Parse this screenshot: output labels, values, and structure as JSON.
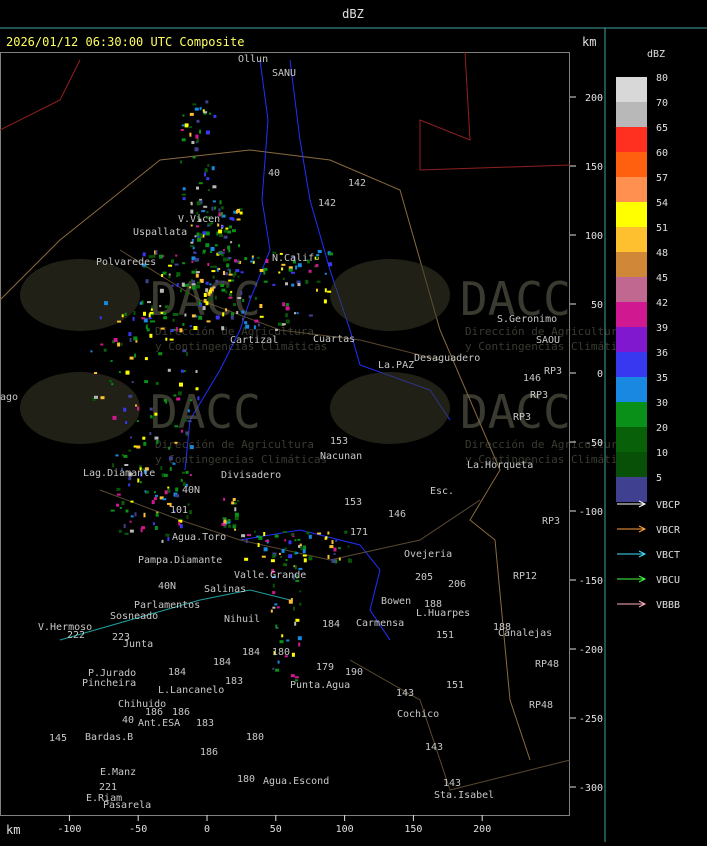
{
  "header": {
    "title": "dBZ"
  },
  "map": {
    "title": "2026/01/12 06:30:00 UTC Composite",
    "unit_top": "km",
    "unit_bottom": "km",
    "xticks": [
      -100,
      -50,
      0,
      50,
      100,
      150,
      200
    ],
    "yticks": [
      200,
      150,
      100,
      50,
      0,
      -50,
      -100,
      -150,
      -200,
      -250,
      -300
    ],
    "watermark": {
      "name": "DACC",
      "line1": "Dirección de Agricultura",
      "line2": "y Contingencias Climáticas"
    },
    "places": [
      "Ollun",
      "SANU",
      "40",
      "142",
      "142",
      "Uspallata",
      "V.Vicen",
      "N.Calif",
      "Polvaredes",
      "S.Geronimo",
      "SAOU",
      "Cuartas",
      "Desaguadero",
      "La.PAZ",
      "RP3",
      "146",
      "RP3",
      "RP3",
      "Cartizal",
      "153",
      "Nacunan",
      "La.Horqueta",
      "Lag.Diamante",
      "Divisadero",
      "Esc.",
      "40N",
      "153",
      "146",
      "RP3",
      "101",
      "Agua.Toro",
      "171",
      "Pampa.Diamante",
      "Ovejeria",
      "Valle.Grande",
      "205",
      "206",
      "RP12",
      "40N",
      "Salinas",
      "Parlamentos",
      "Sosneado",
      "Nihuil",
      "Bowen",
      "L.Huarpes",
      "184",
      "188",
      "Carmensa",
      "188",
      "Canalejas",
      "V.Hermoso",
      "222",
      "223",
      "151",
      "Junta",
      "180",
      "184",
      "184",
      "RP48",
      "P.Jurado",
      "Pincheira",
      "184",
      "183",
      "179",
      "190",
      "Punta.Agua",
      "151",
      "L.Lancanelo",
      "Chihuido",
      "143",
      "RP48",
      "186",
      "186",
      "183",
      "40",
      "Ant.ESA",
      "Cochico",
      "145",
      "Bardas.B",
      "180",
      "143",
      "186",
      "E.Manz",
      "180",
      "Agua.Escond",
      "221",
      "E.Riam",
      "143",
      "Sta.Isabel",
      "Pasarela",
      "ago"
    ]
  },
  "legend": {
    "title": "dBZ",
    "levels": [
      {
        "value": 80,
        "color": "#d8d8d8"
      },
      {
        "value": 70,
        "color": "#b8b8b8"
      },
      {
        "value": 65,
        "color": "#ff3020"
      },
      {
        "value": 60,
        "color": "#ff6010"
      },
      {
        "value": 57,
        "color": "#ff9050"
      },
      {
        "value": 54,
        "color": "#ffff00"
      },
      {
        "value": 51,
        "color": "#ffc030"
      },
      {
        "value": 48,
        "color": "#d08838"
      },
      {
        "value": 45,
        "color": "#c06890"
      },
      {
        "value": 42,
        "color": "#d01890"
      },
      {
        "value": 39,
        "color": "#8018d0"
      },
      {
        "value": 36,
        "color": "#3838f0"
      },
      {
        "value": 35,
        "color": "#1888e0"
      },
      {
        "value": 30,
        "color": "#089018"
      },
      {
        "value": 20,
        "color": "#086008"
      },
      {
        "value": 10,
        "color": "#085008"
      },
      {
        "value": 5,
        "color": "#404090"
      }
    ],
    "radars": [
      {
        "name": "VBCP",
        "color": "#ffffff"
      },
      {
        "name": "VBCR",
        "color": "#ffa040"
      },
      {
        "name": "VBCT",
        "color": "#40e0ff"
      },
      {
        "name": "VBCU",
        "color": "#40ff40"
      },
      {
        "name": "VBBB",
        "color": "#ffb0c0"
      }
    ]
  }
}
